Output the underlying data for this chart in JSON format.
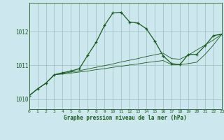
{
  "title": "Graphe pression niveau de la mer (hPa)",
  "background_color": "#cce8ee",
  "grid_color": "#99bbbb",
  "line_color": "#1a5c1a",
  "xlim": [
    0,
    23
  ],
  "ylim": [
    1009.7,
    1012.85
  ],
  "yticks": [
    1010,
    1011,
    1012
  ],
  "xticks": [
    0,
    1,
    2,
    3,
    4,
    5,
    6,
    7,
    8,
    9,
    10,
    11,
    12,
    13,
    14,
    15,
    16,
    17,
    18,
    19,
    20,
    21,
    22,
    23
  ],
  "series_main": [
    [
      0,
      1010.1
    ],
    [
      1,
      1010.3
    ],
    [
      2,
      1010.47
    ],
    [
      3,
      1010.72
    ],
    [
      4,
      1010.78
    ],
    [
      5,
      1010.83
    ],
    [
      6,
      1010.9
    ],
    [
      7,
      1011.3
    ],
    [
      8,
      1011.68
    ],
    [
      9,
      1012.18
    ],
    [
      10,
      1012.55
    ],
    [
      11,
      1012.57
    ],
    [
      12,
      1012.28
    ],
    [
      13,
      1012.25
    ],
    [
      14,
      1012.08
    ],
    [
      15,
      1011.72
    ],
    [
      16,
      1011.28
    ],
    [
      17,
      1011.05
    ],
    [
      18,
      1011.02
    ],
    [
      19,
      1011.32
    ],
    [
      20,
      1011.32
    ],
    [
      21,
      1011.58
    ],
    [
      22,
      1011.88
    ],
    [
      23,
      1011.92
    ]
  ],
  "series_low": [
    [
      0,
      1010.1
    ],
    [
      1,
      1010.3
    ],
    [
      2,
      1010.47
    ],
    [
      3,
      1010.72
    ],
    [
      4,
      1010.74
    ],
    [
      5,
      1010.77
    ],
    [
      6,
      1010.8
    ],
    [
      7,
      1010.83
    ],
    [
      8,
      1010.87
    ],
    [
      9,
      1010.9
    ],
    [
      10,
      1010.94
    ],
    [
      11,
      1010.97
    ],
    [
      12,
      1011.01
    ],
    [
      13,
      1011.04
    ],
    [
      14,
      1011.08
    ],
    [
      15,
      1011.11
    ],
    [
      16,
      1011.14
    ],
    [
      17,
      1011.02
    ],
    [
      18,
      1011.02
    ],
    [
      19,
      1011.05
    ],
    [
      20,
      1011.09
    ],
    [
      21,
      1011.32
    ],
    [
      22,
      1011.6
    ],
    [
      23,
      1011.92
    ]
  ],
  "series_high": [
    [
      0,
      1010.1
    ],
    [
      1,
      1010.3
    ],
    [
      2,
      1010.47
    ],
    [
      3,
      1010.72
    ],
    [
      4,
      1010.76
    ],
    [
      5,
      1010.8
    ],
    [
      6,
      1010.84
    ],
    [
      7,
      1010.89
    ],
    [
      8,
      1010.94
    ],
    [
      9,
      1010.99
    ],
    [
      10,
      1011.04
    ],
    [
      11,
      1011.1
    ],
    [
      12,
      1011.15
    ],
    [
      13,
      1011.2
    ],
    [
      14,
      1011.26
    ],
    [
      15,
      1011.31
    ],
    [
      16,
      1011.36
    ],
    [
      17,
      1011.2
    ],
    [
      18,
      1011.18
    ],
    [
      19,
      1011.3
    ],
    [
      20,
      1011.45
    ],
    [
      21,
      1011.6
    ],
    [
      22,
      1011.75
    ],
    [
      23,
      1011.92
    ]
  ]
}
